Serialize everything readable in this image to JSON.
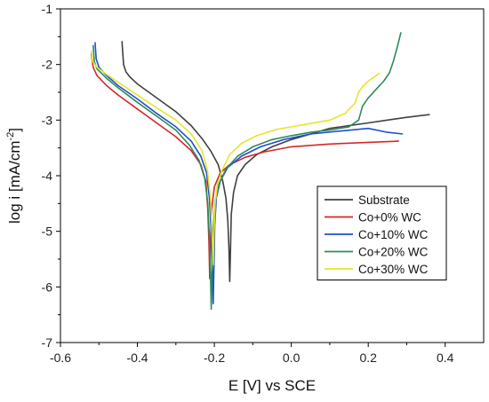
{
  "chart_data": {
    "type": "line",
    "title": "",
    "xlabel": "E [V] vs SCE",
    "ylabel_main": "log i [mA/cm",
    "ylabel_sup": "-2",
    "ylabel_end": "]",
    "xlim": [
      -0.6,
      0.5
    ],
    "ylim": [
      -7,
      -1
    ],
    "xticks": [
      -0.6,
      -0.4,
      -0.2,
      0.0,
      0.2,
      0.4
    ],
    "xtick_labels": [
      "-0.6",
      "-0.4",
      "-0.2",
      "0.0",
      "0.2",
      "0.4"
    ],
    "yticks": [
      -7,
      -6,
      -5,
      -4,
      -3,
      -2,
      -1
    ],
    "ytick_labels": [
      "-7",
      "-6",
      "-5",
      "-4",
      "-3",
      "-2",
      "-1"
    ],
    "grid": false,
    "legend_position": "lower-right",
    "series": [
      {
        "name": "Substrate",
        "color": "#404040",
        "points": [
          [
            -0.44,
            -1.58
          ],
          [
            -0.438,
            -1.8
          ],
          [
            -0.436,
            -2.0
          ],
          [
            -0.43,
            -2.13
          ],
          [
            -0.42,
            -2.22
          ],
          [
            -0.4,
            -2.35
          ],
          [
            -0.37,
            -2.5
          ],
          [
            -0.34,
            -2.65
          ],
          [
            -0.3,
            -2.85
          ],
          [
            -0.26,
            -3.1
          ],
          [
            -0.23,
            -3.35
          ],
          [
            -0.21,
            -3.55
          ],
          [
            -0.19,
            -3.8
          ],
          [
            -0.178,
            -4.1
          ],
          [
            -0.17,
            -4.4
          ],
          [
            -0.165,
            -4.8
          ],
          [
            -0.162,
            -5.3
          ],
          [
            -0.16,
            -5.9
          ],
          [
            -0.158,
            -5.3
          ],
          [
            -0.156,
            -4.7
          ],
          [
            -0.15,
            -4.3
          ],
          [
            -0.14,
            -4.0
          ],
          [
            -0.12,
            -3.8
          ],
          [
            -0.09,
            -3.62
          ],
          [
            -0.05,
            -3.48
          ],
          [
            0.0,
            -3.35
          ],
          [
            0.05,
            -3.25
          ],
          [
            0.1,
            -3.15
          ],
          [
            0.15,
            -3.1
          ],
          [
            0.2,
            -3.05
          ],
          [
            0.25,
            -3.0
          ],
          [
            0.3,
            -2.95
          ],
          [
            0.36,
            -2.9
          ]
        ]
      },
      {
        "name": "Co+0% WC",
        "color": "#d62728",
        "points": [
          [
            -0.52,
            -1.8
          ],
          [
            -0.515,
            -2.05
          ],
          [
            -0.505,
            -2.2
          ],
          [
            -0.48,
            -2.38
          ],
          [
            -0.45,
            -2.55
          ],
          [
            -0.4,
            -2.8
          ],
          [
            -0.35,
            -3.05
          ],
          [
            -0.3,
            -3.3
          ],
          [
            -0.26,
            -3.55
          ],
          [
            -0.235,
            -3.8
          ],
          [
            -0.222,
            -4.1
          ],
          [
            -0.217,
            -4.6
          ],
          [
            -0.214,
            -5.2
          ],
          [
            -0.212,
            -5.85
          ],
          [
            -0.21,
            -5.2
          ],
          [
            -0.207,
            -4.6
          ],
          [
            -0.2,
            -4.2
          ],
          [
            -0.185,
            -3.95
          ],
          [
            -0.16,
            -3.8
          ],
          [
            -0.12,
            -3.67
          ],
          [
            -0.07,
            -3.57
          ],
          [
            0.0,
            -3.48
          ],
          [
            0.1,
            -3.43
          ],
          [
            0.2,
            -3.4
          ],
          [
            0.28,
            -3.38
          ]
        ]
      },
      {
        "name": "Co+10% WC",
        "color": "#1f4fd1",
        "points": [
          [
            -0.51,
            -1.6
          ],
          [
            -0.507,
            -1.9
          ],
          [
            -0.5,
            -2.05
          ],
          [
            -0.48,
            -2.2
          ],
          [
            -0.45,
            -2.38
          ],
          [
            -0.4,
            -2.62
          ],
          [
            -0.35,
            -2.88
          ],
          [
            -0.3,
            -3.12
          ],
          [
            -0.26,
            -3.38
          ],
          [
            -0.235,
            -3.65
          ],
          [
            -0.22,
            -3.95
          ],
          [
            -0.213,
            -4.4
          ],
          [
            -0.208,
            -5.0
          ],
          [
            -0.205,
            -5.7
          ],
          [
            -0.203,
            -6.3
          ],
          [
            -0.201,
            -5.6
          ],
          [
            -0.199,
            -4.9
          ],
          [
            -0.195,
            -4.4
          ],
          [
            -0.185,
            -4.1
          ],
          [
            -0.165,
            -3.85
          ],
          [
            -0.13,
            -3.65
          ],
          [
            -0.08,
            -3.48
          ],
          [
            -0.02,
            -3.35
          ],
          [
            0.05,
            -3.25
          ],
          [
            0.12,
            -3.2
          ],
          [
            0.2,
            -3.15
          ],
          [
            0.25,
            -3.22
          ],
          [
            0.29,
            -3.25
          ]
        ]
      },
      {
        "name": "Co+20% WC",
        "color": "#2e8b57",
        "points": [
          [
            -0.515,
            -1.65
          ],
          [
            -0.512,
            -1.95
          ],
          [
            -0.505,
            -2.08
          ],
          [
            -0.48,
            -2.25
          ],
          [
            -0.45,
            -2.42
          ],
          [
            -0.4,
            -2.68
          ],
          [
            -0.35,
            -2.93
          ],
          [
            -0.3,
            -3.18
          ],
          [
            -0.265,
            -3.45
          ],
          [
            -0.24,
            -3.72
          ],
          [
            -0.225,
            -4.05
          ],
          [
            -0.217,
            -4.5
          ],
          [
            -0.213,
            -5.1
          ],
          [
            -0.21,
            -5.8
          ],
          [
            -0.208,
            -6.4
          ],
          [
            -0.206,
            -5.7
          ],
          [
            -0.203,
            -5.0
          ],
          [
            -0.198,
            -4.45
          ],
          [
            -0.188,
            -4.15
          ],
          [
            -0.17,
            -3.88
          ],
          [
            -0.14,
            -3.65
          ],
          [
            -0.1,
            -3.48
          ],
          [
            -0.05,
            -3.35
          ],
          [
            0.0,
            -3.28
          ],
          [
            0.05,
            -3.22
          ],
          [
            0.1,
            -3.18
          ],
          [
            0.15,
            -3.12
          ],
          [
            0.175,
            -3.0
          ],
          [
            0.185,
            -2.75
          ],
          [
            0.2,
            -2.6
          ],
          [
            0.22,
            -2.45
          ],
          [
            0.24,
            -2.3
          ],
          [
            0.255,
            -2.15
          ],
          [
            0.265,
            -1.95
          ],
          [
            0.275,
            -1.7
          ],
          [
            0.285,
            -1.42
          ]
        ]
      },
      {
        "name": "Co+30% WC",
        "color": "#e5e52e",
        "points": [
          [
            -0.52,
            -1.75
          ],
          [
            -0.516,
            -1.95
          ],
          [
            -0.505,
            -2.05
          ],
          [
            -0.48,
            -2.18
          ],
          [
            -0.45,
            -2.32
          ],
          [
            -0.4,
            -2.55
          ],
          [
            -0.35,
            -2.78
          ],
          [
            -0.3,
            -3.0
          ],
          [
            -0.26,
            -3.25
          ],
          [
            -0.232,
            -3.55
          ],
          [
            -0.218,
            -3.9
          ],
          [
            -0.21,
            -4.4
          ],
          [
            -0.206,
            -5.0
          ],
          [
            -0.203,
            -5.6
          ],
          [
            -0.201,
            -5.0
          ],
          [
            -0.198,
            -4.5
          ],
          [
            -0.192,
            -4.15
          ],
          [
            -0.18,
            -3.9
          ],
          [
            -0.16,
            -3.62
          ],
          [
            -0.13,
            -3.42
          ],
          [
            -0.09,
            -3.28
          ],
          [
            -0.04,
            -3.17
          ],
          [
            0.0,
            -3.12
          ],
          [
            0.05,
            -3.06
          ],
          [
            0.1,
            -3.0
          ],
          [
            0.14,
            -2.88
          ],
          [
            0.165,
            -2.7
          ],
          [
            0.175,
            -2.5
          ],
          [
            0.185,
            -2.4
          ],
          [
            0.2,
            -2.3
          ],
          [
            0.23,
            -2.15
          ]
        ]
      }
    ]
  }
}
